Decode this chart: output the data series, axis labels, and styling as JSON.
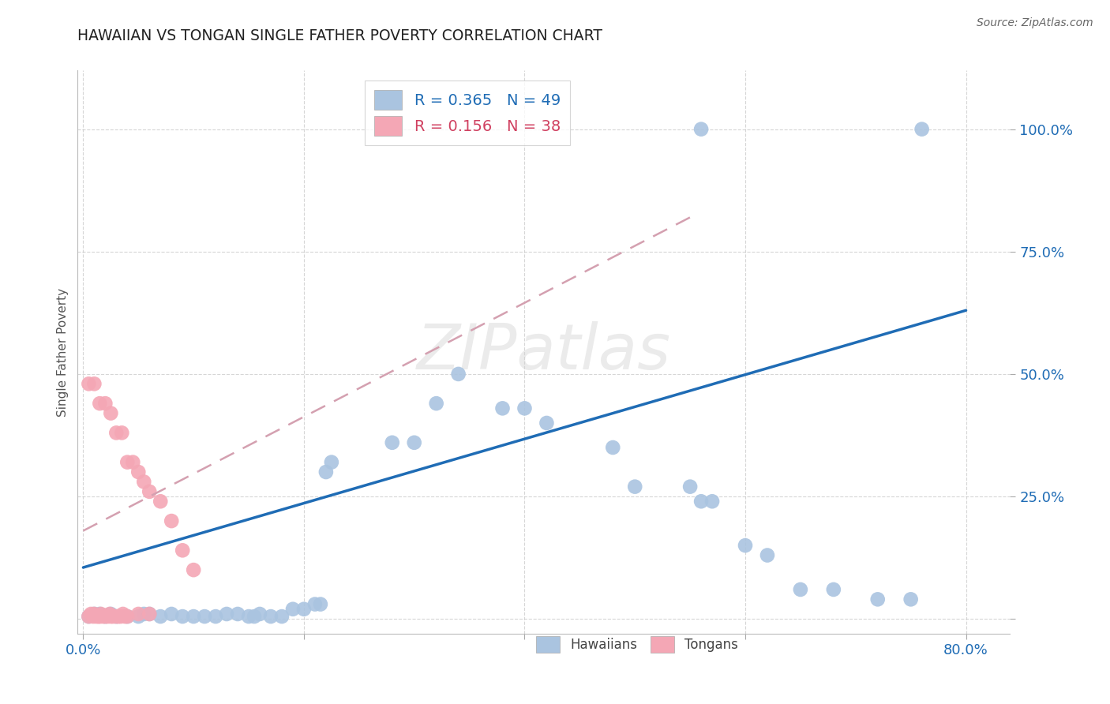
{
  "title": "HAWAIIAN VS TONGAN SINGLE FATHER POVERTY CORRELATION CHART",
  "source": "Source: ZipAtlas.com",
  "ylabel": "Single Father Poverty",
  "xlim": [
    -0.005,
    0.84
  ],
  "ylim": [
    -0.03,
    1.12
  ],
  "xticks": [
    0.0,
    0.2,
    0.4,
    0.6,
    0.8
  ],
  "xtick_labels": [
    "0.0%",
    "",
    "",
    "",
    "80.0%"
  ],
  "yticks": [
    0.0,
    0.25,
    0.5,
    0.75,
    1.0
  ],
  "ytick_labels": [
    "",
    "25.0%",
    "50.0%",
    "75.0%",
    "100.0%"
  ],
  "grid_color": "#cccccc",
  "background_color": "#ffffff",
  "hawaiian_color": "#aac4e0",
  "tongan_color": "#f4a7b5",
  "hawaiian_line_color": "#1f6cb5",
  "tongan_line_color": "#d4a0b0",
  "R_hawaiian": 0.365,
  "N_hawaiian": 49,
  "R_tongan": 0.156,
  "N_tongan": 38,
  "watermark": "ZIPatlas",
  "hawaiian_line": [
    0.0,
    0.105,
    0.8,
    0.63
  ],
  "tongan_line": [
    0.0,
    0.18,
    0.55,
    0.82
  ],
  "hawaiian_points": [
    [
      0.005,
      0.005
    ],
    [
      0.01,
      0.01
    ],
    [
      0.015,
      0.01
    ],
    [
      0.02,
      0.005
    ],
    [
      0.025,
      0.01
    ],
    [
      0.03,
      0.005
    ],
    [
      0.04,
      0.005
    ],
    [
      0.05,
      0.005
    ],
    [
      0.055,
      0.01
    ],
    [
      0.06,
      0.01
    ],
    [
      0.07,
      0.005
    ],
    [
      0.08,
      0.01
    ],
    [
      0.09,
      0.005
    ],
    [
      0.1,
      0.005
    ],
    [
      0.11,
      0.005
    ],
    [
      0.12,
      0.005
    ],
    [
      0.13,
      0.01
    ],
    [
      0.14,
      0.01
    ],
    [
      0.15,
      0.005
    ],
    [
      0.155,
      0.005
    ],
    [
      0.16,
      0.01
    ],
    [
      0.17,
      0.005
    ],
    [
      0.18,
      0.005
    ],
    [
      0.19,
      0.02
    ],
    [
      0.2,
      0.02
    ],
    [
      0.21,
      0.03
    ],
    [
      0.215,
      0.03
    ],
    [
      0.22,
      0.3
    ],
    [
      0.225,
      0.32
    ],
    [
      0.28,
      0.36
    ],
    [
      0.3,
      0.36
    ],
    [
      0.32,
      0.44
    ],
    [
      0.34,
      0.5
    ],
    [
      0.38,
      0.43
    ],
    [
      0.4,
      0.43
    ],
    [
      0.42,
      0.4
    ],
    [
      0.48,
      0.35
    ],
    [
      0.5,
      0.27
    ],
    [
      0.55,
      0.27
    ],
    [
      0.56,
      0.24
    ],
    [
      0.57,
      0.24
    ],
    [
      0.6,
      0.15
    ],
    [
      0.62,
      0.13
    ],
    [
      0.65,
      0.06
    ],
    [
      0.68,
      0.06
    ],
    [
      0.72,
      0.04
    ],
    [
      0.75,
      0.04
    ],
    [
      0.56,
      1.0
    ],
    [
      0.76,
      1.0
    ]
  ],
  "tongan_points": [
    [
      0.005,
      0.005
    ],
    [
      0.007,
      0.01
    ],
    [
      0.009,
      0.005
    ],
    [
      0.01,
      0.01
    ],
    [
      0.012,
      0.005
    ],
    [
      0.014,
      0.005
    ],
    [
      0.015,
      0.005
    ],
    [
      0.016,
      0.01
    ],
    [
      0.018,
      0.005
    ],
    [
      0.02,
      0.005
    ],
    [
      0.022,
      0.005
    ],
    [
      0.024,
      0.01
    ],
    [
      0.025,
      0.005
    ],
    [
      0.027,
      0.005
    ],
    [
      0.03,
      0.005
    ],
    [
      0.032,
      0.005
    ],
    [
      0.034,
      0.005
    ],
    [
      0.036,
      0.01
    ],
    [
      0.038,
      0.005
    ],
    [
      0.04,
      0.005
    ],
    [
      0.05,
      0.01
    ],
    [
      0.06,
      0.01
    ],
    [
      0.005,
      0.48
    ],
    [
      0.01,
      0.48
    ],
    [
      0.015,
      0.44
    ],
    [
      0.02,
      0.44
    ],
    [
      0.025,
      0.42
    ],
    [
      0.03,
      0.38
    ],
    [
      0.035,
      0.38
    ],
    [
      0.04,
      0.32
    ],
    [
      0.045,
      0.32
    ],
    [
      0.05,
      0.3
    ],
    [
      0.055,
      0.28
    ],
    [
      0.06,
      0.26
    ],
    [
      0.07,
      0.24
    ],
    [
      0.08,
      0.2
    ],
    [
      0.09,
      0.14
    ],
    [
      0.1,
      0.1
    ]
  ]
}
